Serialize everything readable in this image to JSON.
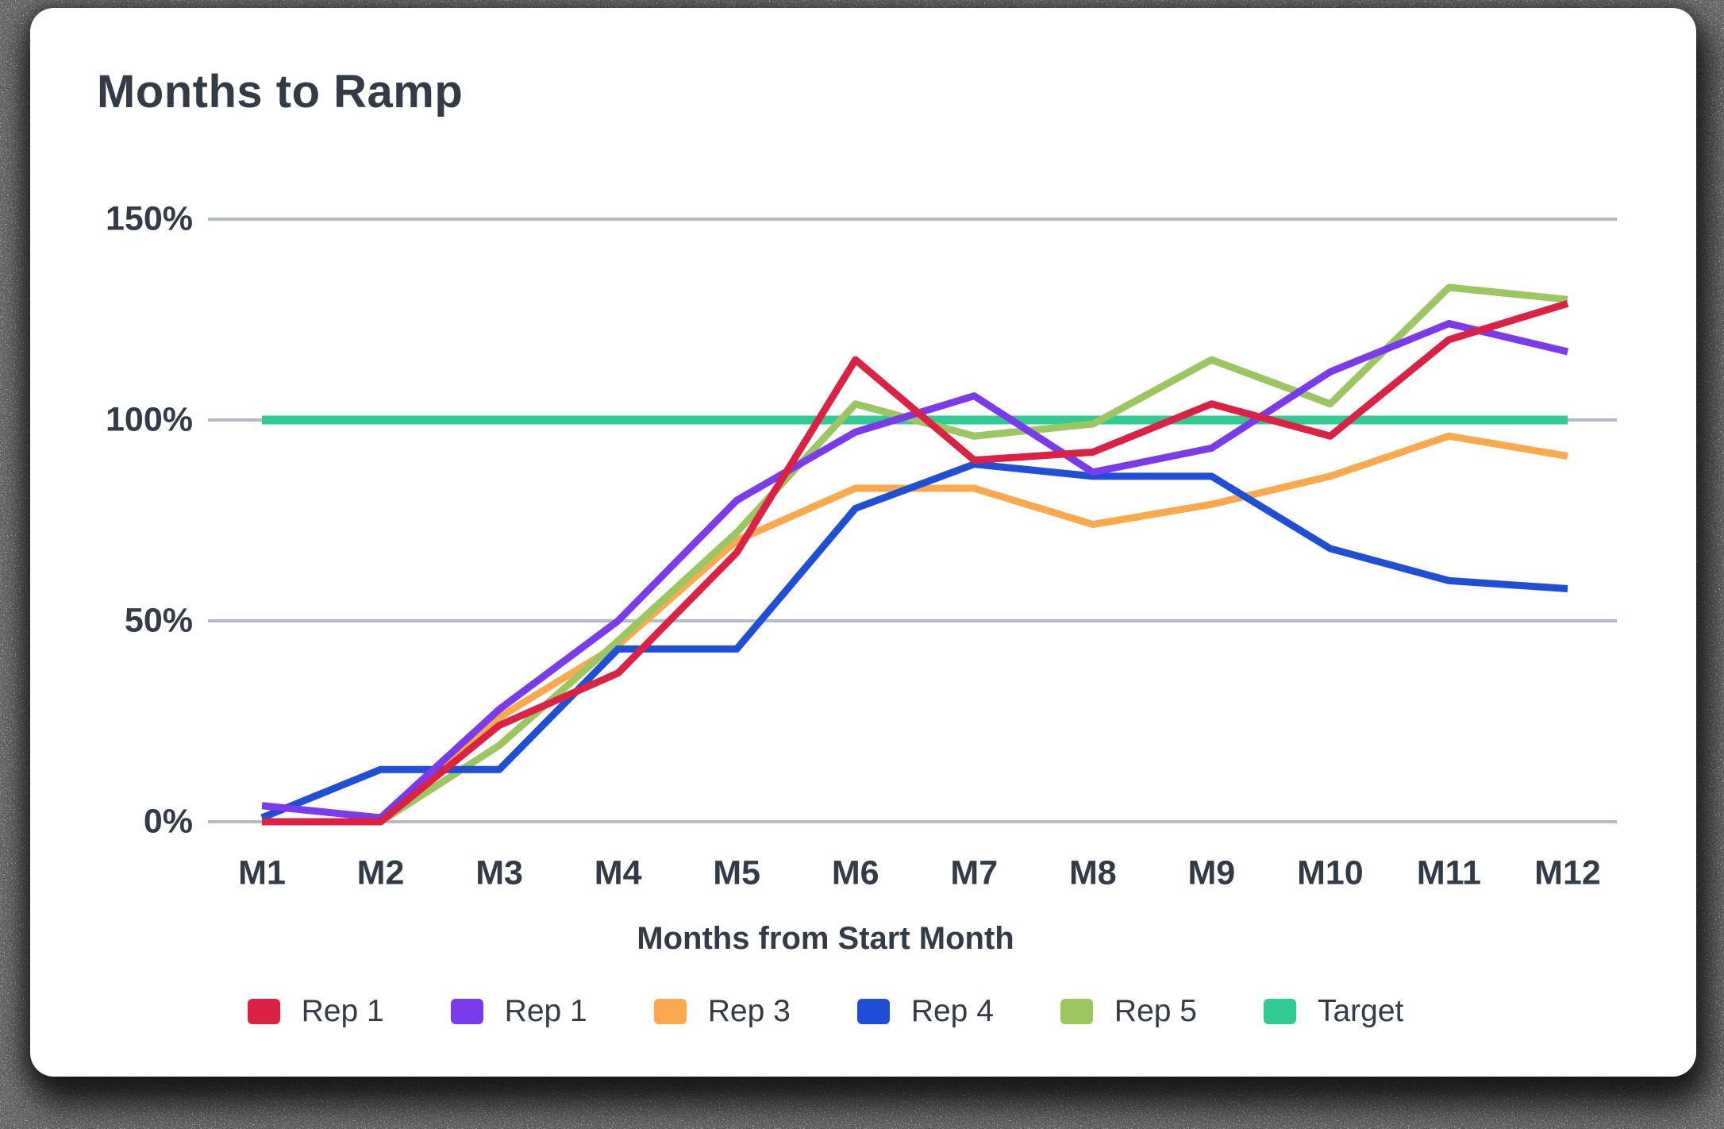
{
  "card": {
    "title": "Months to Ramp"
  },
  "chart_data": {
    "type": "line",
    "title": "Months to Ramp",
    "xlabel": "Months from Start Month",
    "ylabel": "",
    "categories": [
      "M1",
      "M2",
      "M3",
      "M4",
      "M5",
      "M6",
      "M7",
      "M8",
      "M9",
      "M10",
      "M11",
      "M12"
    ],
    "yticks": [
      {
        "value": 0,
        "label": "0%"
      },
      {
        "value": 50,
        "label": "50%"
      },
      {
        "value": 100,
        "label": "100%"
      },
      {
        "value": 150,
        "label": "150%"
      }
    ],
    "ylim": [
      0,
      157
    ],
    "grid": true,
    "legend_position": "bottom",
    "colors": {
      "text": "#333B46",
      "gridline": "#B3BCC6",
      "rep1_red": "#DC2145",
      "rep1_purple": "#7C3AED",
      "rep3_orange": "#FBA94C",
      "rep4_blue": "#1F4FD6",
      "rep5_green": "#9CC65F",
      "target_teal": "#2FCB92"
    },
    "series": [
      {
        "id": "rep1-red",
        "name": "Rep 1",
        "color": "#DC2145",
        "z": 5,
        "role": "series",
        "values": [
          0,
          0,
          24,
          37,
          67,
          115,
          90,
          92,
          104,
          96,
          120,
          129
        ]
      },
      {
        "id": "rep1-purple",
        "name": "Rep 1",
        "color": "#7C3AED",
        "z": 4,
        "role": "series",
        "values": [
          4,
          1,
          28,
          50,
          80,
          97,
          106,
          87,
          93,
          112,
          124,
          117
        ]
      },
      {
        "id": "rep3",
        "name": "Rep 3",
        "color": "#FBA94C",
        "z": 1,
        "role": "series",
        "values": [
          0,
          0,
          26,
          44,
          70,
          83,
          83,
          74,
          79,
          86,
          96,
          91
        ]
      },
      {
        "id": "rep4",
        "name": "Rep 4",
        "color": "#1F4FD6",
        "z": 3,
        "role": "series",
        "values": [
          1,
          13,
          13,
          43,
          43,
          78,
          89,
          86,
          86,
          68,
          60,
          58
        ]
      },
      {
        "id": "rep5",
        "name": "Rep 5",
        "color": "#9CC65F",
        "z": 2,
        "role": "series",
        "values": [
          0,
          0,
          19,
          45,
          72,
          104,
          96,
          99,
          115,
          104,
          133,
          130
        ]
      },
      {
        "id": "target",
        "name": "Target",
        "color": "#2FCB92",
        "z": 0,
        "role": "target",
        "values": [
          100,
          100,
          100,
          100,
          100,
          100,
          100,
          100,
          100,
          100,
          100,
          100
        ]
      }
    ]
  }
}
